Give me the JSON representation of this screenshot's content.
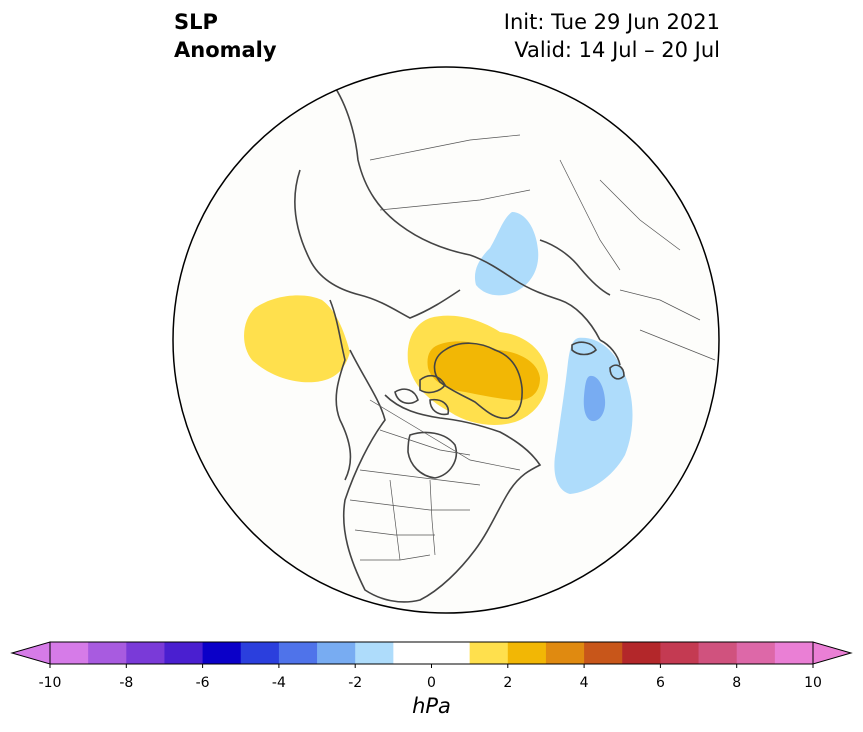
{
  "title": {
    "left_line1": "SLP",
    "left_line2": "Anomaly",
    "right_line1": "Init: Tue 29 Jun 2021",
    "right_line2": "Valid: 14 Jul – 20 Jul"
  },
  "colorbar": {
    "label": "hPa",
    "ticks": [
      "-10",
      "-8",
      "-6",
      "-4",
      "-2",
      "0",
      "2",
      "4",
      "6",
      "8",
      "10"
    ],
    "min": -10,
    "max": 10,
    "colors": [
      "#d67be8",
      "#a85be0",
      "#7a3ad8",
      "#4a1fd0",
      "#0b00c8",
      "#2b3fdd",
      "#4f73ea",
      "#78acf2",
      "#aedcfb",
      "#ffffff",
      "#ffffff",
      "#ffe04d",
      "#f2b705",
      "#e08a10",
      "#c8561a",
      "#b3272a",
      "#c43a52",
      "#d0527e",
      "#dd68a8",
      "#ea7fd5"
    ],
    "extend_low": "#d67be8",
    "extend_high": "#ea7fd5"
  },
  "map": {
    "projection": "north-polar-stereographic",
    "anomaly_regions": [
      {
        "name": "positive anomaly north Pacific / Alaska",
        "level": "1 to 2 hPa"
      },
      {
        "name": "positive anomaly Greenland",
        "level": "up to 3-4 hPa"
      },
      {
        "name": "negative anomaly Scandinavia / Barents",
        "level": "-1 to -2 hPa"
      },
      {
        "name": "negative anomaly North Atlantic",
        "level": "up to -2 to -3 hPa"
      }
    ]
  }
}
